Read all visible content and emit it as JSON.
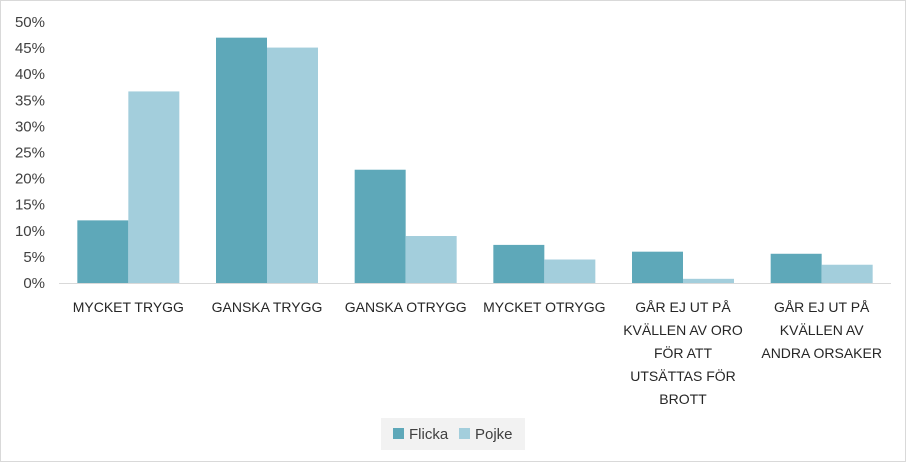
{
  "chart_data": {
    "type": "bar",
    "categories": [
      "MYCKET TRYGG",
      "GANSKA TRYGG",
      "GANSKA OTRYGG",
      "MYCKET OTRYGG",
      "GÅR EJ UT PÅ KVÄLLEN AV ORO FÖR ATT UTSÄTTAS FÖR BROTT",
      "GÅR EJ UT PÅ KVÄLLEN AV ANDRA ORSAKER"
    ],
    "category_lines": [
      [
        "MYCKET TRYGG"
      ],
      [
        "GANSKA TRYGG"
      ],
      [
        "GANSKA OTRYGG"
      ],
      [
        "MYCKET OTRYGG"
      ],
      [
        "GÅR EJ UT PÅ",
        "KVÄLLEN AV ORO",
        "FÖR ATT",
        "UTSÄTTAS FÖR",
        "BROTT"
      ],
      [
        "GÅR EJ UT PÅ",
        "KVÄLLEN AV",
        "ANDRA ORSAKER"
      ]
    ],
    "series": [
      {
        "name": "Flicka",
        "color": "#5ea8b9",
        "values": [
          0.12,
          0.47,
          0.217,
          0.073,
          0.06,
          0.056
        ]
      },
      {
        "name": "Pojke",
        "color": "#a3cedc",
        "values": [
          0.367,
          0.451,
          0.09,
          0.045,
          0.008,
          0.035
        ]
      }
    ],
    "ylim": [
      0,
      0.5
    ],
    "yticks": [
      0,
      0.05,
      0.1,
      0.15,
      0.2,
      0.25,
      0.3,
      0.35,
      0.4,
      0.45,
      0.5
    ],
    "ytick_labels": [
      "0%",
      "5%",
      "10%",
      "15%",
      "20%",
      "25%",
      "30%",
      "35%",
      "40%",
      "45%",
      "50%"
    ],
    "grid": false,
    "legend_position": "bottom-center",
    "title": "",
    "xlabel": "",
    "ylabel": ""
  }
}
